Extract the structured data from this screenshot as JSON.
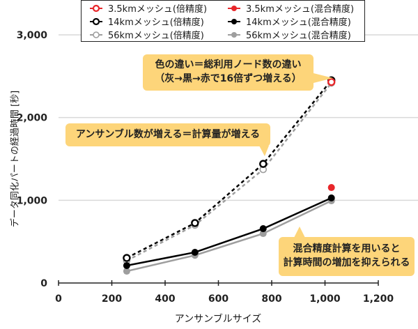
{
  "chart_data": {
    "type": "line",
    "title": "",
    "xlabel": "アンサンブルサイズ",
    "ylabel": "データ同化パートの経過時間 [秒]",
    "xlim": [
      0,
      1200
    ],
    "ylim": [
      0,
      3000
    ],
    "x_ticks": [
      "0",
      "200",
      "400",
      "600",
      "800",
      "1,000",
      "1,200"
    ],
    "y_ticks": [
      "0",
      "1,000",
      "2,000",
      "3,000"
    ],
    "grid": "horizontal",
    "legend_position": "top",
    "x": [
      256,
      512,
      768,
      1024
    ],
    "series": [
      {
        "name": "3.5kmメッシュ(倍精度)",
        "color": "#e8262a",
        "marker": "open-circle",
        "linestyle": "dashed",
        "x": [
          1024
        ],
        "values": [
          2430
        ]
      },
      {
        "name": "14kmメッシュ(倍精度)",
        "color": "#000000",
        "marker": "open-circle",
        "linestyle": "dashed",
        "x": [
          256,
          512,
          768,
          1024
        ],
        "values": [
          303,
          725,
          1440,
          2451
        ]
      },
      {
        "name": "56kmメッシュ(倍精度)",
        "color": "#9e9e9e",
        "marker": "open-circle",
        "linestyle": "dashed",
        "x": [
          256,
          512,
          768,
          1024
        ],
        "values": [
          270,
          700,
          1373,
          2418
        ]
      },
      {
        "name": "3.5kmメッシュ(混合精度)",
        "color": "#e8262a",
        "marker": "filled-circle",
        "linestyle": "solid",
        "x": [
          1024
        ],
        "values": [
          1154
        ]
      },
      {
        "name": "14kmメッシュ(混合精度)",
        "color": "#000000",
        "marker": "filled-circle",
        "linestyle": "solid",
        "x": [
          256,
          512,
          768,
          1024
        ],
        "values": [
          211,
          371,
          657,
          1028
        ]
      },
      {
        "name": "56kmメッシュ(混合精度)",
        "color": "#9e9e9e",
        "marker": "filled-circle",
        "linestyle": "solid",
        "x": [
          256,
          512,
          768,
          1024
        ],
        "values": [
          143,
          335,
          598,
          994
        ]
      }
    ],
    "annotations": [
      "色の違い＝総利用ノード数の違い（灰→黒→赤で16倍ずつ増える）",
      "アンサンブル数が増える＝計算量が増える",
      "混合精度計算を用いると計算時間の増加を抑えられる"
    ]
  },
  "legend": {
    "items": [
      {
        "label": "3.5kmメッシュ(倍精度)"
      },
      {
        "label": "3.5kmメッシュ(混合精度)"
      },
      {
        "label": "14kmメッシュ(倍精度)"
      },
      {
        "label": "14kmメッシュ(混合精度)"
      },
      {
        "label": "56kmメッシュ(倍精度)"
      },
      {
        "label": "56kmメッシュ(混合精度)"
      }
    ]
  },
  "axes": {
    "xlabel": "アンサンブルサイズ",
    "ylabel": "データ同化パートの経過時間 [秒]"
  },
  "callouts": {
    "nodes_line1": "色の違い＝総利用ノード数の違い",
    "nodes_line2": "（灰→黒→赤で16倍ずつ増える）",
    "ensemble": "アンサンブル数が増える＝計算量が増える",
    "mixed_line1": "混合精度計算を用いると",
    "mixed_line2": "計算時間の増加を抑えられる"
  },
  "colors": {
    "red": "#e8262a",
    "black": "#000000",
    "gray": "#9e9e9e",
    "callout": "#fdd57a",
    "grid": "#d9d9d9"
  }
}
